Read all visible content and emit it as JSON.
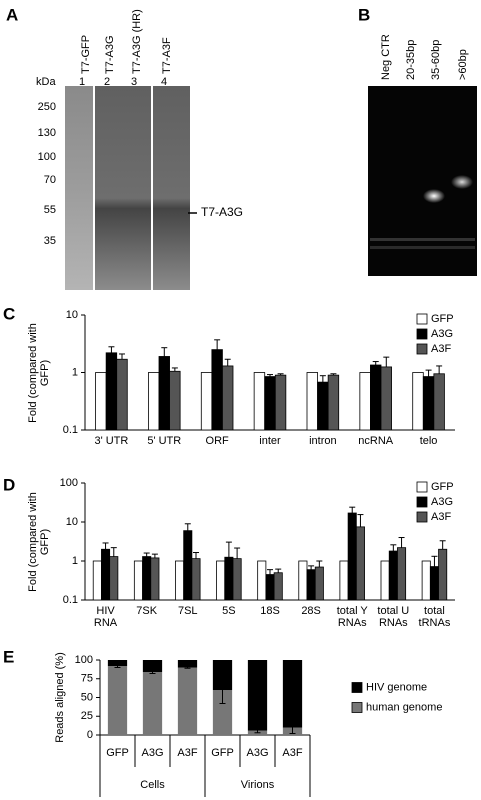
{
  "panel_labels": [
    "A",
    "B",
    "C",
    "D",
    "E"
  ],
  "gel_a": {
    "lanes": [
      "T7-GFP",
      "T7-A3G",
      "T7-A3G (HR)",
      "T7-A3F"
    ],
    "lane_numbers": [
      "1",
      "2",
      "3",
      "4"
    ],
    "kda_label": "kDa",
    "markers": [
      250,
      130,
      100,
      70,
      55,
      35
    ],
    "band_label": "T7-A3G"
  },
  "gel_b": {
    "lanes": [
      "Neg CTR",
      "20-35bp",
      "35-60bp",
      ">60bp"
    ]
  },
  "chart_data": [
    {
      "type": "bar",
      "ylabel": "Fold (compared with GFP)",
      "log_scale": true,
      "legend": "upper right",
      "categories": [
        "3' UTR",
        "5' UTR",
        "ORF",
        "inter",
        "intron",
        "ncRNA",
        "telo"
      ],
      "series": [
        {
          "name": "GFP",
          "color": "#ffffff",
          "values": [
            1,
            1,
            1,
            1,
            1,
            1,
            1
          ]
        },
        {
          "name": "A3G",
          "color": "#000000",
          "values": [
            2.2,
            1.9,
            2.5,
            0.85,
            0.68,
            1.35,
            0.85
          ],
          "errors": [
            0.6,
            0.8,
            1.2,
            0.07,
            0.2,
            0.2,
            0.25
          ]
        },
        {
          "name": "A3F",
          "color": "#555555",
          "values": [
            1.7,
            1.05,
            1.3,
            0.9,
            0.9,
            1.25,
            0.95
          ],
          "errors": [
            0.4,
            0.15,
            0.4,
            0.05,
            0.05,
            0.6,
            0.35
          ]
        }
      ],
      "ylim": [
        0.1,
        10
      ],
      "yticks": [
        0.1,
        1,
        10
      ]
    },
    {
      "type": "bar",
      "ylabel": "Fold (compared with GFP)",
      "log_scale": true,
      "legend": "upper right",
      "categories": [
        "HIV RNA",
        "7SK",
        "7SL",
        "5S",
        "18S",
        "28S",
        "total Y RNAs",
        "total U RNAs",
        "total tRNAs"
      ],
      "series": [
        {
          "name": "GFP",
          "color": "#ffffff",
          "values": [
            1,
            1,
            1,
            1,
            1,
            1,
            1,
            1,
            1
          ]
        },
        {
          "name": "A3G",
          "color": "#000000",
          "values": [
            2.0,
            1.3,
            6.0,
            1.25,
            0.45,
            0.6,
            17,
            1.8,
            0.72
          ],
          "errors": [
            0.9,
            0.3,
            3,
            1.8,
            0.15,
            0.15,
            7,
            0.8,
            0.6
          ]
        },
        {
          "name": "A3F",
          "color": "#555555",
          "values": [
            1.3,
            1.2,
            1.15,
            1.15,
            0.5,
            0.7,
            7.5,
            2.2,
            2.0
          ],
          "errors": [
            0.9,
            0.3,
            0.5,
            1.0,
            0.12,
            0.3,
            8,
            1.8,
            1.3
          ]
        }
      ],
      "ylim": [
        0.1,
        100
      ],
      "yticks": [
        0.1,
        1,
        10,
        100
      ]
    },
    {
      "type": "stacked_bar",
      "ylabel": "Reads aligned (%)",
      "legend": "right",
      "categories": [
        "GFP",
        "A3G",
        "A3F",
        "GFP",
        "A3G",
        "A3F"
      ],
      "groups": [
        "Cells",
        "Virions"
      ],
      "series": [
        {
          "name": "human genome",
          "color": "#777777",
          "values": [
            92,
            84,
            90,
            60,
            6,
            10
          ],
          "errors": [
            2,
            2,
            1,
            18,
            3,
            8
          ]
        },
        {
          "name": "HIV genome",
          "color": "#000000",
          "values": [
            8,
            16,
            10,
            40,
            94,
            90
          ]
        }
      ],
      "ylim": [
        0,
        100
      ],
      "yticks": [
        0,
        25,
        50,
        75,
        100
      ]
    }
  ]
}
